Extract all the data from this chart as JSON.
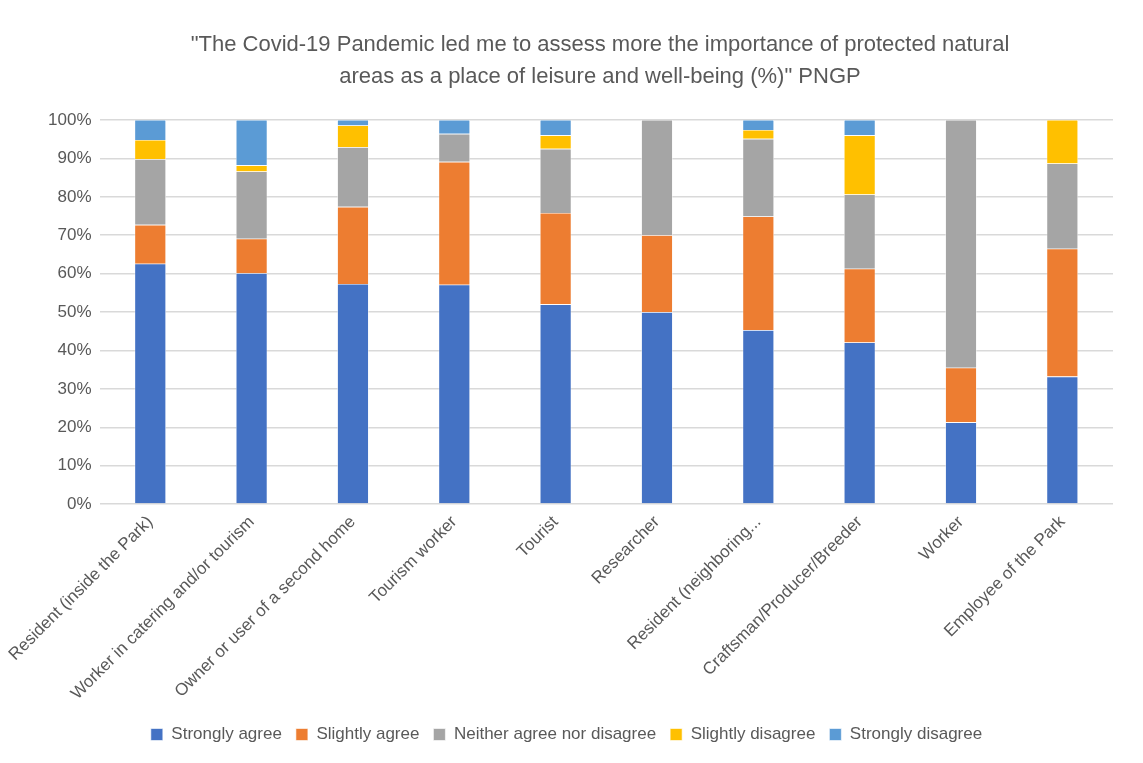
{
  "chart_data": {
    "type": "bar",
    "stacked": true,
    "title": "\"The Covid-19 Pandemic led me to assess more the importance of protected natural areas as a place of leisure and well-being (%)\" PNGP",
    "categories": [
      "Resident (inside the Park)",
      "Worker in catering and/or tourism",
      "Owner or user of a second home",
      "Tourism worker",
      "Tourist",
      "Researcher",
      "Resident (neighboring...",
      "Craftsman/Producer/Breeder",
      "Worker",
      "Employee of the Park"
    ],
    "series": [
      {
        "name": "Strongly agree",
        "color": "#4472c4",
        "values": [
          62.6,
          60.1,
          57.3,
          57.1,
          52.0,
          50.0,
          45.3,
          42.1,
          21.3,
          33.2
        ]
      },
      {
        "name": "Slightly agree",
        "color": "#ed7d31",
        "values": [
          10.1,
          9.0,
          20.1,
          32.0,
          23.8,
          20.0,
          29.6,
          19.2,
          14.2,
          33.3
        ]
      },
      {
        "name": "Neither agree nor disagree",
        "color": "#a5a5a5",
        "values": [
          17.1,
          17.5,
          15.5,
          7.3,
          16.7,
          30.0,
          20.2,
          19.3,
          64.5,
          22.2
        ]
      },
      {
        "name": "Slightly disagree",
        "color": "#ffc000",
        "values": [
          5.0,
          1.6,
          5.7,
          0,
          3.5,
          0,
          2.3,
          15.4,
          0,
          11.3
        ]
      },
      {
        "name": "Strongly disagree",
        "color": "#5b9bd5",
        "values": [
          5.2,
          11.8,
          1.4,
          3.6,
          4.0,
          0,
          2.6,
          4.0,
          0,
          0
        ]
      }
    ],
    "ylim": [
      0,
      100
    ],
    "yticks": [
      {
        "value": 0,
        "label": "0%"
      },
      {
        "value": 10,
        "label": "10%"
      },
      {
        "value": 20,
        "label": "20%"
      },
      {
        "value": 30,
        "label": "30%"
      },
      {
        "value": 40,
        "label": "40%"
      },
      {
        "value": 50,
        "label": "50%"
      },
      {
        "value": 60,
        "label": "60%"
      },
      {
        "value": 70,
        "label": "70%"
      },
      {
        "value": 80,
        "label": "80%"
      },
      {
        "value": 90,
        "label": "90%"
      },
      {
        "value": 100,
        "label": "100%"
      }
    ],
    "grid": "y",
    "legend": "bottom"
  }
}
